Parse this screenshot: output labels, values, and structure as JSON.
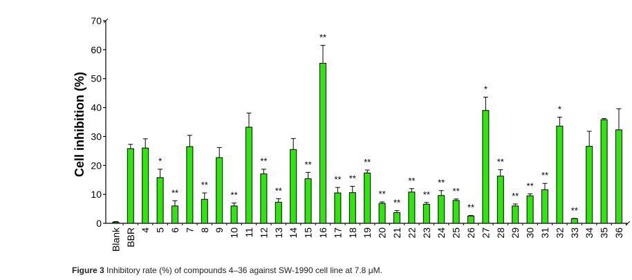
{
  "chart_data": {
    "type": "bar",
    "ylabel": "Cell inhibition (%)",
    "xlabel": "",
    "ylim": [
      0,
      70
    ],
    "yticks": [
      0,
      10,
      20,
      30,
      40,
      50,
      60,
      70
    ],
    "grid": false,
    "legend": "none",
    "bar_color": "#2ee60b",
    "categories": [
      "Blank",
      "BBR",
      "4",
      "5",
      "6",
      "7",
      "8",
      "9",
      "10",
      "11",
      "12",
      "13",
      "14",
      "15",
      "16",
      "17",
      "18",
      "19",
      "20",
      "21",
      "22",
      "23",
      "24",
      "25",
      "26",
      "27",
      "28",
      "29",
      "30",
      "31",
      "32",
      "33",
      "34",
      "35",
      "36"
    ],
    "values": [
      0.4,
      25.8,
      26,
      15.8,
      6,
      26.5,
      8.3,
      22.7,
      6,
      33.2,
      17.1,
      7.3,
      25.5,
      15.4,
      55.3,
      10.5,
      10.6,
      17.4,
      6.9,
      3.7,
      10.8,
      6.6,
      9.6,
      7.9,
      2.5,
      39,
      16.3,
      6,
      9.5,
      11.6,
      33.6,
      1.6,
      26.6,
      35.8,
      32.3
    ],
    "errors": [
      0.2,
      1.5,
      3.2,
      2.9,
      1.8,
      3.9,
      2.2,
      3.5,
      1.0,
      4.9,
      1.6,
      1.2,
      3.8,
      2.2,
      6.2,
      1.9,
      2.2,
      1.0,
      0.5,
      0.7,
      1.2,
      0.6,
      1.7,
      0.5,
      0.2,
      4.6,
      2.2,
      0.7,
      0.7,
      2.2,
      3.1,
      0.1,
      5.2,
      0.4,
      7.3
    ],
    "significance": [
      "",
      "",
      "",
      "*",
      "**",
      "",
      "**",
      "",
      "**",
      "",
      "**",
      "**",
      "",
      "**",
      "**",
      "**",
      "**",
      "**",
      "**",
      "**",
      "**",
      "**",
      "**",
      "**",
      "**",
      "*",
      "**",
      "**",
      "**",
      "**",
      "*",
      "**",
      "",
      "",
      ""
    ]
  },
  "caption": {
    "label": "Figure 3",
    "text": "Inhibitory rate (%) of compounds 4–36 against SW-1990 cell line at 7.8 μM."
  }
}
